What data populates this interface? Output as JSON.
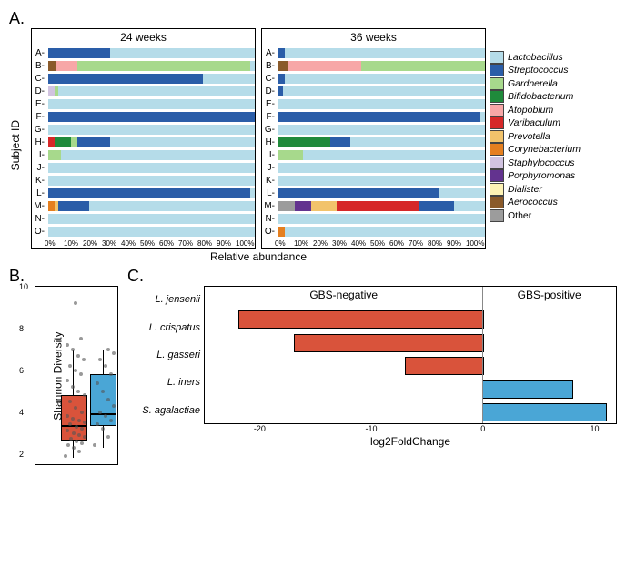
{
  "palette": {
    "Lactobacillus": "#b5dce9",
    "Streptococcus": "#2a5da8",
    "Gardnerella": "#a7d98c",
    "Bifidobacterium": "#1f8a3b",
    "Atopobium": "#f7a7a7",
    "Varibaculum": "#d62728",
    "Prevotella": "#f2c36b",
    "Corynebacterium": "#e57f1f",
    "Staphylococcus": "#d1c3e0",
    "Porphyromonas": "#63338f",
    "Dialister": "#fef3b5",
    "Aerococcus": "#8a5a2a",
    "Other": "#9c9c9c"
  },
  "panelA": {
    "label": "A.",
    "ylabel": "Subject ID",
    "xlabel": "Relative abundance",
    "facets": [
      "24 weeks",
      "36 weeks"
    ],
    "subjects": [
      "A",
      "B",
      "C",
      "D",
      "E",
      "F",
      "G",
      "H",
      "I",
      "J",
      "K",
      "L",
      "M",
      "N",
      "O"
    ],
    "xticks": [
      "0%",
      "10%",
      "20%",
      "30%",
      "40%",
      "50%",
      "60%",
      "70%",
      "80%",
      "90%",
      "100%"
    ],
    "data": {
      "24 weeks": {
        "A": [
          [
            "Streptococcus",
            30
          ],
          [
            "Lactobacillus",
            70
          ]
        ],
        "B": [
          [
            "Aerococcus",
            4
          ],
          [
            "Atopobium",
            10
          ],
          [
            "Gardnerella",
            84
          ],
          [
            "Lactobacillus",
            2
          ]
        ],
        "C": [
          [
            "Streptococcus",
            75
          ],
          [
            "Lactobacillus",
            25
          ]
        ],
        "D": [
          [
            "Staphylococcus",
            3
          ],
          [
            "Gardnerella",
            2
          ],
          [
            "Lactobacillus",
            95
          ]
        ],
        "E": [
          [
            "Lactobacillus",
            100
          ]
        ],
        "F": [
          [
            "Streptococcus",
            100
          ]
        ],
        "G": [
          [
            "Lactobacillus",
            100
          ]
        ],
        "H": [
          [
            "Varibaculum",
            3
          ],
          [
            "Bifidobacterium",
            8
          ],
          [
            "Gardnerella",
            3
          ],
          [
            "Streptococcus",
            16
          ],
          [
            "Lactobacillus",
            70
          ]
        ],
        "I": [
          [
            "Gardnerella",
            6
          ],
          [
            "Lactobacillus",
            94
          ]
        ],
        "J": [
          [
            "Lactobacillus",
            100
          ]
        ],
        "K": [
          [
            "Lactobacillus",
            100
          ]
        ],
        "L": [
          [
            "Streptococcus",
            98
          ],
          [
            "Lactobacillus",
            2
          ]
        ],
        "M": [
          [
            "Corynebacterium",
            3
          ],
          [
            "Prevotella",
            2
          ],
          [
            "Streptococcus",
            15
          ],
          [
            "Lactobacillus",
            80
          ]
        ],
        "N": [
          [
            "Lactobacillus",
            100
          ]
        ],
        "O": [
          [
            "Lactobacillus",
            100
          ]
        ]
      },
      "36 weeks": {
        "A": [
          [
            "Streptococcus",
            3
          ],
          [
            "Lactobacillus",
            97
          ]
        ],
        "B": [
          [
            "Aerococcus",
            5
          ],
          [
            "Atopobium",
            35
          ],
          [
            "Gardnerella",
            60
          ]
        ],
        "C": [
          [
            "Streptococcus",
            3
          ],
          [
            "Lactobacillus",
            97
          ]
        ],
        "D": [
          [
            "Streptococcus",
            2
          ],
          [
            "Lactobacillus",
            98
          ]
        ],
        "E": [
          [
            "Lactobacillus",
            100
          ]
        ],
        "F": [
          [
            "Streptococcus",
            98
          ],
          [
            "Lactobacillus",
            2
          ]
        ],
        "G": [
          [
            "Lactobacillus",
            100
          ]
        ],
        "H": [
          [
            "Bifidobacterium",
            25
          ],
          [
            "Streptococcus",
            10
          ],
          [
            "Lactobacillus",
            65
          ]
        ],
        "I": [
          [
            "Gardnerella",
            12
          ],
          [
            "Lactobacillus",
            88
          ]
        ],
        "J": [
          [
            "Lactobacillus",
            100
          ]
        ],
        "K": [
          [
            "Lactobacillus",
            100
          ]
        ],
        "L": [
          [
            "Streptococcus",
            78
          ],
          [
            "Lactobacillus",
            22
          ]
        ],
        "M": [
          [
            "Other",
            8
          ],
          [
            "Porphyromonas",
            8
          ],
          [
            "Prevotella",
            12
          ],
          [
            "Varibaculum",
            40
          ],
          [
            "Streptococcus",
            17
          ],
          [
            "Lactobacillus",
            15
          ]
        ],
        "N": [
          [
            "Lactobacillus",
            100
          ]
        ],
        "O": [
          [
            "Corynebacterium",
            3
          ],
          [
            "Lactobacillus",
            97
          ]
        ]
      }
    }
  },
  "legend": {
    "items": [
      "Lactobacillus",
      "Streptococcus",
      "Gardnerella",
      "Bifidobacterium",
      "Atopobium",
      "Varibaculum",
      "Prevotella",
      "Corynebacterium",
      "Staphylococcus",
      "Porphyromonas",
      "Dialister",
      "Aerococcus",
      "Other"
    ]
  },
  "panelB": {
    "label": "B.",
    "ylabel": "Shannon Diversity",
    "ylim": [
      1.5,
      10
    ],
    "yticks": [
      2,
      4,
      6,
      8,
      10
    ],
    "boxes": [
      {
        "color": "#d9533b",
        "x": 0.3,
        "w": 0.3,
        "q1": 2.7,
        "median": 3.4,
        "q3": 4.8,
        "wlo": 1.8,
        "whi": 7.0,
        "points": [
          1.9,
          2.1,
          2.3,
          2.4,
          2.5,
          2.6,
          2.7,
          2.8,
          2.9,
          3.0,
          3.1,
          3.2,
          3.3,
          3.4,
          3.5,
          3.6,
          3.7,
          3.8,
          4.0,
          4.2,
          4.5,
          4.8,
          5.0,
          5.2,
          5.5,
          5.8,
          6.0,
          6.2,
          6.5,
          6.7,
          7.0,
          7.2,
          7.5,
          9.2
        ]
      },
      {
        "color": "#4aa6d6",
        "x": 0.65,
        "w": 0.3,
        "q1": 3.4,
        "median": 4.0,
        "q3": 5.8,
        "wlo": 2.3,
        "whi": 7.0,
        "points": [
          2.4,
          2.8,
          3.2,
          3.4,
          3.6,
          3.8,
          4.0,
          4.3,
          4.6,
          5.0,
          5.4,
          5.8,
          6.2,
          6.5,
          6.8,
          7.0
        ]
      }
    ]
  },
  "panelC": {
    "label": "C.",
    "titles": [
      "GBS-negative",
      "GBS-positive"
    ],
    "xlabel": "log2FoldChange",
    "xlim": [
      -25,
      12
    ],
    "xticks": [
      -20,
      -10,
      0,
      10
    ],
    "colors": {
      "neg": "#d9533b",
      "pos": "#4aa6d6"
    },
    "bars": [
      {
        "label": "L. jensenii",
        "value": -22
      },
      {
        "label": "L. crispatus",
        "value": -17
      },
      {
        "label": "L. gasseri",
        "value": -7
      },
      {
        "label": "L. iners",
        "value": 8
      },
      {
        "label": "S. agalactiae",
        "value": 11
      }
    ]
  }
}
